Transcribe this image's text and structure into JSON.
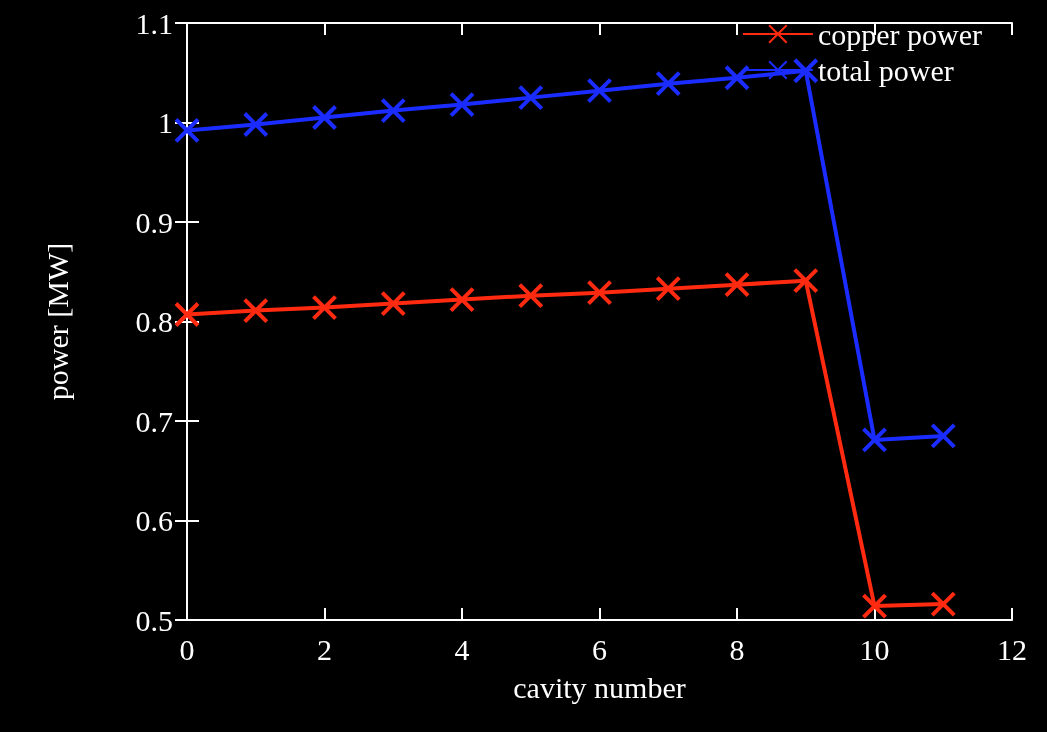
{
  "chart_data": {
    "type": "line",
    "xlabel": "cavity number",
    "ylabel": "power [MW]",
    "xlim": [
      0,
      12
    ],
    "xticks": [
      0,
      2,
      4,
      6,
      8,
      10,
      12
    ],
    "ylim": [
      0.5,
      1.1
    ],
    "yticks": [
      0.5,
      0.6,
      0.7,
      0.8,
      0.9,
      1,
      1.1
    ],
    "x": [
      0,
      1,
      2,
      3,
      4,
      5,
      6,
      7,
      8,
      9,
      10,
      11
    ],
    "legend": "top right",
    "grid": false,
    "series": [
      {
        "name": "copper power",
        "color": "#ff2a10",
        "marker": "cross",
        "values": [
          0.807,
          0.811,
          0.814,
          0.818,
          0.822,
          0.826,
          0.829,
          0.833,
          0.837,
          0.841,
          0.514,
          0.516
        ]
      },
      {
        "name": "total power",
        "color": "#1a2cff",
        "marker": "cross",
        "values": [
          0.992,
          0.998,
          1.005,
          1.012,
          1.018,
          1.025,
          1.032,
          1.039,
          1.045,
          1.052,
          0.681,
          0.685
        ]
      }
    ]
  }
}
